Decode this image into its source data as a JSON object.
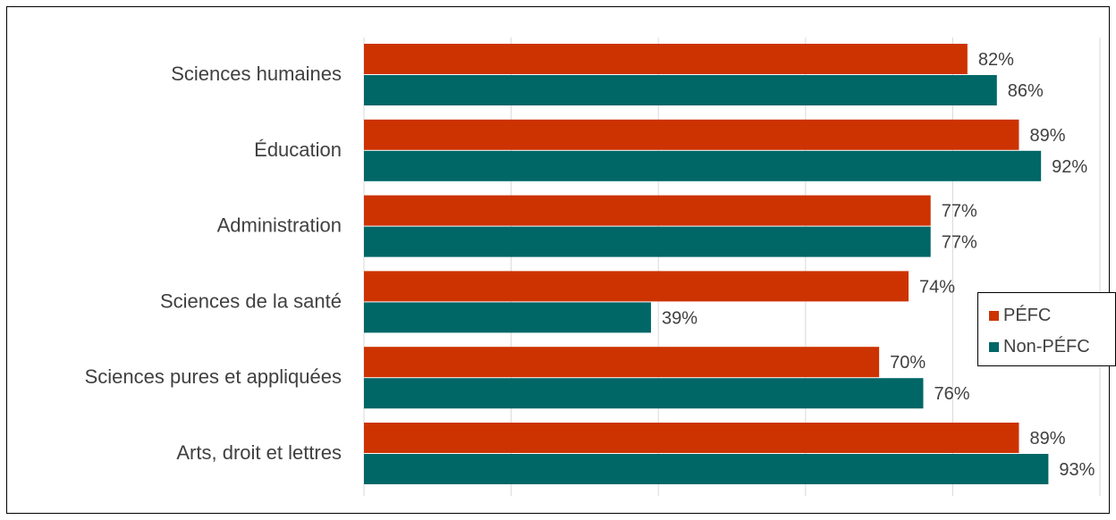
{
  "chart_data": {
    "type": "bar",
    "orientation": "horizontal",
    "categories": [
      "Sciences humaines",
      "Éducation",
      "Administration",
      "Sciences de la santé",
      "Sciences pures et appliquées",
      "Arts, droit et lettres"
    ],
    "series": [
      {
        "name": "PÉFC",
        "color": "#cc3300",
        "values": [
          82,
          89,
          77,
          74,
          70,
          89
        ],
        "labels": [
          "82%",
          "89%",
          "77%",
          "74%",
          "70%",
          "89%"
        ]
      },
      {
        "name": "Non-PÉFC",
        "color": "#006666",
        "values": [
          86,
          92,
          77,
          39,
          76,
          93
        ],
        "labels": [
          "86%",
          "92%",
          "77%",
          "39%",
          "76%",
          "93%"
        ]
      }
    ],
    "xlim": [
      0,
      100
    ],
    "xgrid": true,
    "legend_position": "right"
  }
}
